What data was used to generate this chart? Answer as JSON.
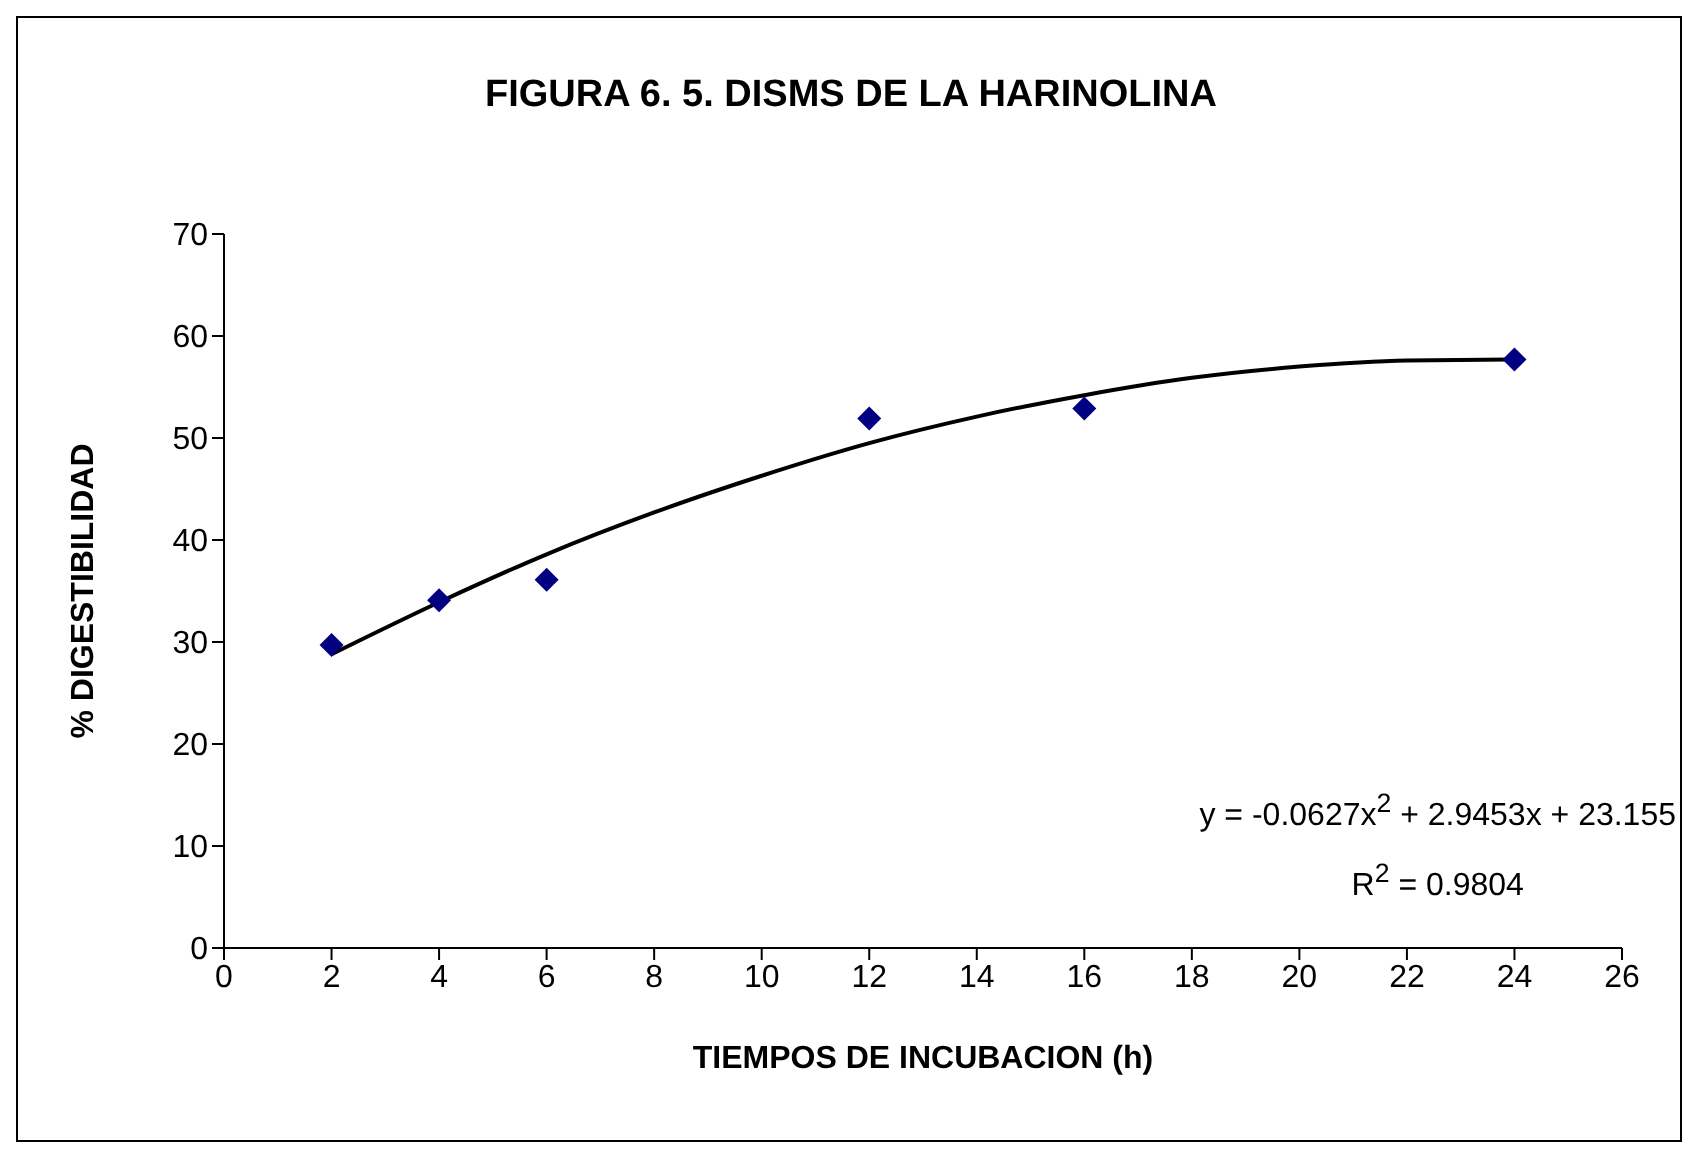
{
  "chart_data": {
    "type": "scatter",
    "title": "FIGURA 6. 5. DISMS DE LA HARINOLINA",
    "xlabel": "TIEMPOS DE INCUBACION (h)",
    "ylabel": "% DIGESTIBILIDAD",
    "series": [
      {
        "color": "#000080",
        "marker": "diamond",
        "x": [
          2,
          4,
          6,
          12,
          16,
          24
        ],
        "values": [
          29.7,
          34.1,
          36.1,
          51.9,
          52.9,
          57.7
        ]
      },
      {
        "type": "line",
        "color": "#000000",
        "x": [
          2,
          4,
          6,
          8,
          10,
          12,
          14,
          16,
          18,
          20,
          22,
          24
        ],
        "values": [
          28.8,
          33.9,
          38.6,
          42.7,
          46.3,
          49.5,
          52.1,
          54.2,
          55.9,
          57.0,
          57.6,
          57.7
        ]
      }
    ],
    "xlim": [
      0,
      26
    ],
    "xticks": [
      0,
      2,
      4,
      6,
      8,
      10,
      12,
      14,
      16,
      18,
      20,
      22,
      24,
      26
    ],
    "ylim": [
      0,
      70
    ],
    "yticks": [
      0,
      10,
      20,
      30,
      40,
      50,
      60,
      70
    ],
    "grid": false,
    "legend": false,
    "line_style": "solid",
    "annotations": [
      "y = -0.0627x$^{2}$ + 2.9453x + 23.155",
      "R$^{2}$ = 0.9804"
    ]
  }
}
